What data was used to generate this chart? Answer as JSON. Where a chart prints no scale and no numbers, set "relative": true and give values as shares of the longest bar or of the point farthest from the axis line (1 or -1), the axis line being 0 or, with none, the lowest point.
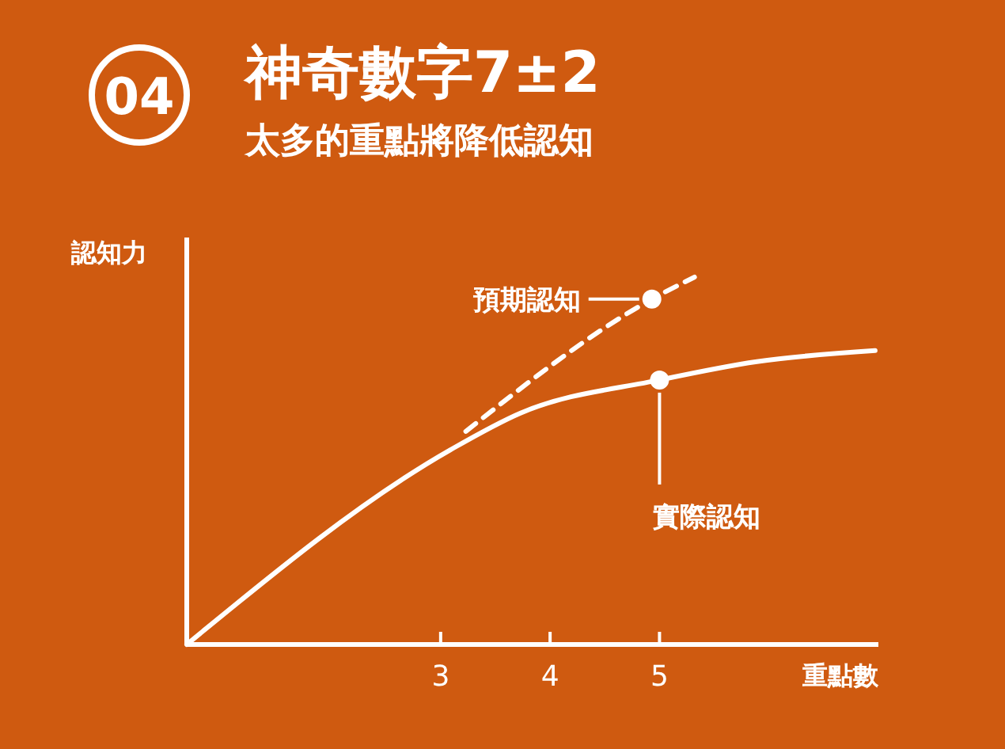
{
  "chart_data": {
    "type": "line",
    "title": "神奇數字7±2",
    "subtitle": "太多的重點將降低認知",
    "xlabel": "重點數",
    "ylabel": "認知力",
    "relative": true,
    "xlim": [
      0.68,
      7
    ],
    "xticks": [
      3,
      4,
      5
    ],
    "marker": "none",
    "series": [
      {
        "color": "#ffffff",
        "line_style": "solid",
        "x": [
          0.68,
          3.09,
          3.73,
          5,
          5.89,
          6.97
        ],
        "values": [
          0,
          0.53,
          0.63,
          0.72,
          0.77,
          0.8
        ]
      },
      {
        "color": "#ffffff",
        "line_style": "dashed",
        "x": [
          3.23,
          4.93,
          5.32
        ],
        "values": [
          0.58,
          0.94,
          1
        ]
      }
    ],
    "annotations": [
      "04",
      {
        "text": "預期認知",
        "x": 4.93,
        "y": 0.94
      },
      {
        "text": "實際認知",
        "x": 5,
        "y": 0.72
      }
    ]
  }
}
